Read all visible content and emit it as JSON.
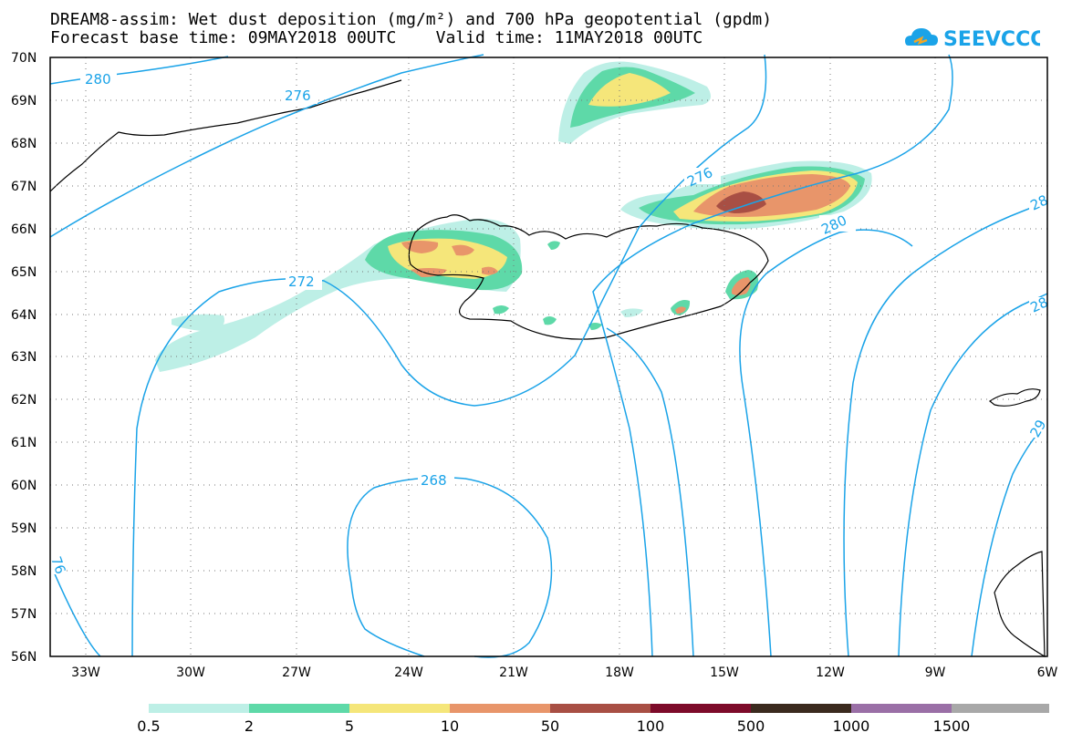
{
  "header": {
    "title_line1": "DREAM8-assim: Wet dust deposition (mg/m²) and 700 hPa geopotential (gpdm)",
    "title_line2": "Forecast base time: 09MAY2018 00UTC    Valid time: 11MAY2018 00UTC"
  },
  "logo": {
    "text": "SEEVCCC",
    "icon": "cloud-icon"
  },
  "map": {
    "projection": "lat-lon",
    "lon_range": [
      -34.5,
      -6
    ],
    "lat_range": [
      56,
      70
    ],
    "grid": true,
    "lat_ticks": [
      "70N",
      "69N",
      "68N",
      "67N",
      "66N",
      "65N",
      "64N",
      "63N",
      "62N",
      "61N",
      "60N",
      "59N",
      "58N",
      "57N",
      "56N"
    ],
    "lon_ticks": [
      "33W",
      "30W",
      "27W",
      "24W",
      "21W",
      "18W",
      "15W",
      "12W",
      "9W",
      "6W"
    ],
    "contour_labels": [
      "280",
      "276",
      "276",
      "272",
      "268",
      "280",
      "28",
      "28",
      "29",
      "76"
    ],
    "contour_color": "#1aa3e8"
  },
  "legend": {
    "labels": [
      "0.5",
      "2",
      "5",
      "10",
      "50",
      "100",
      "500",
      "1000",
      "1500"
    ],
    "colors": [
      "#bdefe6",
      "#5ed9a8",
      "#f5e67a",
      "#e8956a",
      "#a84f44",
      "#7d0b2a",
      "#3b2a1e",
      "#9a6fa6",
      "#a8a8a8"
    ]
  }
}
